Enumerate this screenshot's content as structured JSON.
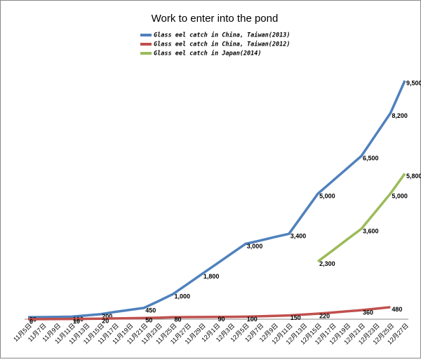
{
  "chart_data": {
    "type": "line",
    "title": "Work to enter into the pond",
    "categories": [
      "11月5日",
      "11月7日",
      "11月9日",
      "11月11日",
      "11月13日",
      "11月15日",
      "11月17日",
      "11月19日",
      "11月21日",
      "11月23日",
      "11月25日",
      "11月27日",
      "11月29日",
      "12月1日",
      "12月3日",
      "12月5日",
      "12月7日",
      "12月9日",
      "12月11日",
      "12月13日",
      "12月15日",
      "12月17日",
      "12月19日",
      "12月21日",
      "12月23日",
      "12月25日",
      "12月27日"
    ],
    "series": [
      {
        "name": "Glass eel catch in China, Taiwan(2013)",
        "color": "#4f81bd",
        "values": [
          80,
          85,
          90,
          100,
          150,
          200,
          290,
          370,
          450,
          720,
          1000,
          1400,
          1800,
          2200,
          2600,
          3000,
          3130,
          3270,
          3400,
          4200,
          5000,
          5500,
          6000,
          6500,
          7350,
          8200,
          9500
        ],
        "value_labels": [
          "80",
          null,
          null,
          "100",
          null,
          "200",
          null,
          null,
          "450",
          null,
          "1,000",
          null,
          "1,800",
          null,
          null,
          "3,000",
          null,
          null,
          "3,400",
          null,
          "5,000",
          null,
          null,
          "6,500",
          null,
          "8,200",
          "9,500"
        ]
      },
      {
        "name": "Glass eel catch in China, Taiwan(2012)",
        "color": "#c0504d",
        "values": [
          0,
          3,
          7,
          10,
          15,
          20,
          30,
          40,
          50,
          60,
          80,
          83,
          87,
          90,
          95,
          100,
          117,
          133,
          150,
          185,
          220,
          267,
          313,
          360,
          420,
          480,
          null
        ],
        "value_labels": [
          "0",
          null,
          null,
          "10",
          null,
          "20",
          null,
          null,
          "50",
          null,
          "80",
          null,
          null,
          "90",
          null,
          "100",
          null,
          null,
          "150",
          null,
          "220",
          null,
          null,
          "360",
          null,
          "480",
          null
        ]
      },
      {
        "name": "Glass eel catch in Japan(2014)",
        "color": "#9bbb59",
        "values": [
          null,
          null,
          null,
          null,
          null,
          null,
          null,
          null,
          null,
          null,
          null,
          null,
          null,
          null,
          null,
          null,
          null,
          null,
          null,
          null,
          2300,
          2730,
          3170,
          3600,
          4300,
          5000,
          5800
        ],
        "value_labels": [
          null,
          null,
          null,
          null,
          null,
          null,
          null,
          null,
          null,
          null,
          null,
          null,
          null,
          null,
          null,
          null,
          null,
          null,
          null,
          null,
          "2,300",
          null,
          null,
          "3,600",
          null,
          "5,000",
          "5,800"
        ]
      }
    ]
  }
}
